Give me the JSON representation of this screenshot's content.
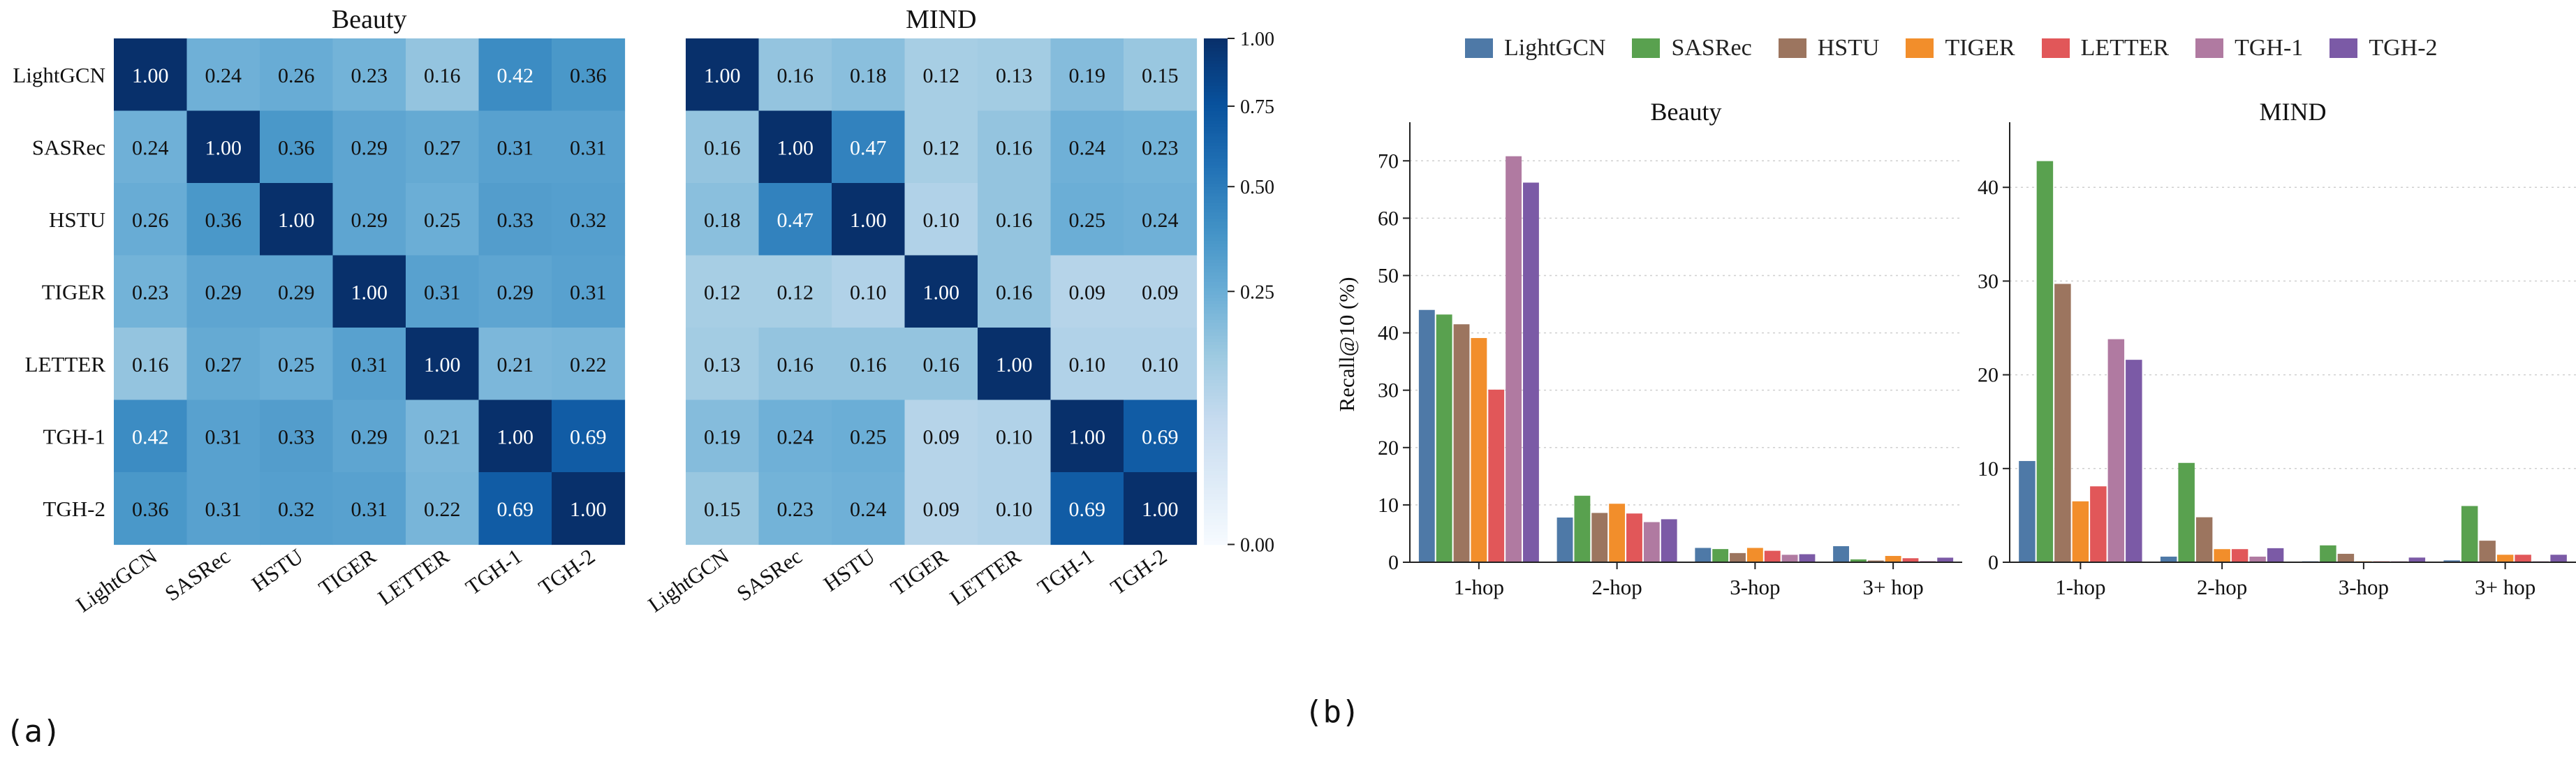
{
  "panel_labels": {
    "a": "(a)",
    "b": "(b)"
  },
  "colors": {
    "LightGCN": "#4e79a7",
    "SASRec": "#59a14f",
    "HSTU": "#9c755f",
    "TIGER": "#f28e2b",
    "LETTER": "#e15759",
    "TGH-1": "#b07aa1",
    "TGH-2": "#7b5aa6"
  },
  "chart_data": [
    {
      "type": "heatmap",
      "title": "Beauty",
      "rows": [
        "LightGCN",
        "SASRec",
        "HSTU",
        "TIGER",
        "LETTER",
        "TGH-1",
        "TGH-2"
      ],
      "cols": [
        "LightGCN",
        "SASRec",
        "HSTU",
        "TIGER",
        "LETTER",
        "TGH-1",
        "TGH-2"
      ],
      "values": [
        [
          1.0,
          0.24,
          0.26,
          0.23,
          0.16,
          0.42,
          0.36
        ],
        [
          0.24,
          1.0,
          0.36,
          0.29,
          0.27,
          0.31,
          0.31
        ],
        [
          0.26,
          0.36,
          1.0,
          0.29,
          0.25,
          0.33,
          0.32
        ],
        [
          0.23,
          0.29,
          0.29,
          1.0,
          0.31,
          0.29,
          0.31
        ],
        [
          0.16,
          0.27,
          0.25,
          0.31,
          1.0,
          0.21,
          0.22
        ],
        [
          0.42,
          0.31,
          0.33,
          0.29,
          0.21,
          1.0,
          0.69
        ],
        [
          0.36,
          0.31,
          0.32,
          0.31,
          0.22,
          0.69,
          1.0
        ]
      ]
    },
    {
      "type": "heatmap",
      "title": "MIND",
      "rows": [
        "LightGCN",
        "SASRec",
        "HSTU",
        "TIGER",
        "LETTER",
        "TGH-1",
        "TGH-2"
      ],
      "cols": [
        "LightGCN",
        "SASRec",
        "HSTU",
        "TIGER",
        "LETTER",
        "TGH-1",
        "TGH-2"
      ],
      "values": [
        [
          1.0,
          0.16,
          0.18,
          0.12,
          0.13,
          0.19,
          0.15
        ],
        [
          0.16,
          1.0,
          0.47,
          0.12,
          0.16,
          0.24,
          0.23
        ],
        [
          0.18,
          0.47,
          1.0,
          0.1,
          0.16,
          0.25,
          0.24
        ],
        [
          0.12,
          0.12,
          0.1,
          1.0,
          0.16,
          0.09,
          0.09
        ],
        [
          0.13,
          0.16,
          0.16,
          0.16,
          1.0,
          0.1,
          0.1
        ],
        [
          0.19,
          0.24,
          0.25,
          0.09,
          0.1,
          1.0,
          0.69
        ],
        [
          0.15,
          0.23,
          0.24,
          0.09,
          0.1,
          0.69,
          1.0
        ]
      ],
      "colorbar": {
        "ticks": [
          "0.00",
          "0.25",
          "0.50",
          "0.75",
          "1.00"
        ],
        "range": [
          0,
          1
        ],
        "scale": "sqrt"
      }
    },
    {
      "type": "bar",
      "title": "Beauty",
      "ylabel": "Recall@10 (%)",
      "categories": [
        "1-hop",
        "2-hop",
        "3-hop",
        "3+ hop"
      ],
      "ylim": [
        0,
        76
      ],
      "yticks": [
        0,
        10,
        20,
        30,
        40,
        50,
        60,
        70
      ],
      "grid": "horizontal dotted",
      "series": [
        {
          "name": "LightGCN",
          "values": [
            44.0,
            7.8,
            2.5,
            2.8
          ]
        },
        {
          "name": "SASRec",
          "values": [
            43.2,
            11.6,
            2.3,
            0.5
          ]
        },
        {
          "name": "HSTU",
          "values": [
            41.5,
            8.6,
            1.6,
            0.3
          ]
        },
        {
          "name": "TIGER",
          "values": [
            39.1,
            10.2,
            2.5,
            1.1
          ]
        },
        {
          "name": "LETTER",
          "values": [
            30.1,
            8.5,
            2.0,
            0.7
          ]
        },
        {
          "name": "TGH-1",
          "values": [
            70.8,
            7.0,
            1.3,
            0.2
          ]
        },
        {
          "name": "TGH-2",
          "values": [
            66.2,
            7.5,
            1.4,
            0.8
          ]
        }
      ]
    },
    {
      "type": "bar",
      "title": "MIND",
      "ylabel": "",
      "categories": [
        "1-hop",
        "2-hop",
        "3-hop",
        "3+ hop"
      ],
      "ylim": [
        0,
        46.5
      ],
      "yticks": [
        0,
        10,
        20,
        30,
        40
      ],
      "grid": "horizontal dotted",
      "series": [
        {
          "name": "LightGCN",
          "values": [
            10.8,
            0.6,
            0.1,
            0.2
          ]
        },
        {
          "name": "SASRec",
          "values": [
            42.8,
            10.6,
            1.8,
            6.0
          ]
        },
        {
          "name": "HSTU",
          "values": [
            29.7,
            4.8,
            0.9,
            2.3
          ]
        },
        {
          "name": "TIGER",
          "values": [
            6.5,
            1.4,
            0.1,
            0.8
          ]
        },
        {
          "name": "LETTER",
          "values": [
            8.1,
            1.4,
            0.1,
            0.8
          ]
        },
        {
          "name": "TGH-1",
          "values": [
            23.8,
            0.6,
            0.1,
            0.1
          ]
        },
        {
          "name": "TGH-2",
          "values": [
            21.6,
            1.5,
            0.5,
            0.8
          ]
        }
      ]
    }
  ]
}
